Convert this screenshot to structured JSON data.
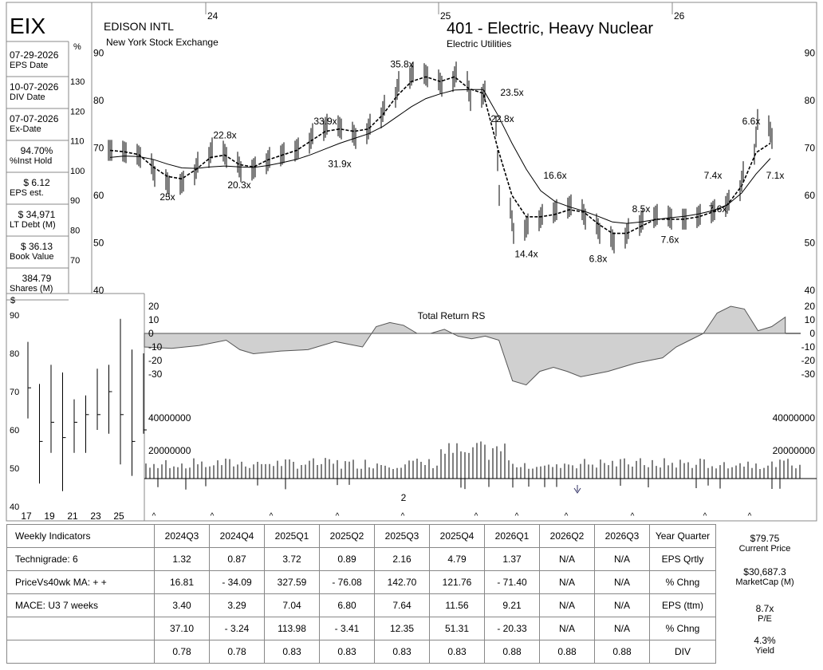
{
  "header": {
    "ticker": "EIX",
    "company": "EDISON INTL",
    "exchange": "New York Stock Exchange",
    "industry": "401 - Electric, Heavy Nuclear",
    "sector": "Electric Utilities",
    "year_labels": [
      "24",
      "25",
      "26"
    ]
  },
  "sidebar": {
    "items": [
      {
        "value": "07-29-2026",
        "label": "EPS Date"
      },
      {
        "value": "10-07-2026",
        "label": "DIV Date"
      },
      {
        "value": "07-07-2026",
        "label": "Ex-Date"
      },
      {
        "value": "94.70%",
        "label": "%Inst Hold"
      },
      {
        "value": "$ 6.12",
        "label": "EPS est."
      },
      {
        "value": "$ 34,971",
        "label": "LT Debt (M)"
      },
      {
        "value": "$ 36.13",
        "label": "Book Value"
      },
      {
        "value": "384.79",
        "label": "Shares (M)"
      }
    ],
    "pct_symbol": "%",
    "pct_ticks": [
      "130",
      "120",
      "110",
      "100",
      "90",
      "80",
      "70"
    ]
  },
  "chart_data": [
    {
      "type": "line",
      "name": "weekly price",
      "ylim": [
        40,
        90
      ],
      "yticks": [
        40,
        50,
        60,
        70,
        80,
        90
      ],
      "xlim": [
        0,
        140
      ],
      "x": [
        0,
        3,
        6,
        9,
        12,
        15,
        18,
        21,
        24,
        27,
        30,
        33,
        36,
        39,
        42,
        45,
        48,
        51,
        54,
        57,
        60,
        63,
        66,
        69,
        72,
        75,
        78,
        81,
        84,
        87,
        90,
        93,
        96,
        99,
        102,
        105,
        108,
        111,
        114,
        117,
        120,
        123,
        126,
        129,
        132,
        135,
        138
      ],
      "close": [
        69.5,
        69,
        68,
        64,
        62,
        63,
        67,
        70,
        68,
        65,
        66,
        68,
        69,
        70,
        73,
        75,
        74,
        72,
        75,
        79,
        84,
        86,
        85,
        83,
        86,
        80,
        82,
        60,
        52,
        54,
        56,
        57,
        58,
        55,
        52,
        50,
        53,
        55,
        56,
        55,
        55,
        56,
        57,
        59,
        65,
        76,
        72
      ],
      "ma10": [
        69.5,
        69.2,
        68.6,
        66,
        64,
        63.5,
        65.5,
        68,
        68.5,
        66.5,
        66,
        67.5,
        68.5,
        69.5,
        71.5,
        73.5,
        74,
        73.5,
        74,
        77,
        81,
        84,
        85,
        84,
        85,
        82.5,
        81.5,
        70,
        60,
        55.5,
        55.5,
        56,
        57,
        56.5,
        54,
        52,
        52,
        53.5,
        55,
        55,
        55,
        55.5,
        56.5,
        58,
        62,
        69,
        71
      ],
      "ma40": [
        68,
        68.3,
        68.2,
        67.6,
        66.6,
        65.8,
        65.7,
        66,
        66.2,
        66,
        65.9,
        66.3,
        66.9,
        67.6,
        68.6,
        69.8,
        71,
        72,
        73,
        74.5,
        76.6,
        78.7,
        80.4,
        81.4,
        82.2,
        82.3,
        82.3,
        77,
        71,
        65.5,
        61,
        58.7,
        57.6,
        56.7,
        55.6,
        54.4,
        54.1,
        54.4,
        54.9,
        55.3,
        55.6,
        56.1,
        56.8,
        58,
        60.5,
        64.5,
        67.8
      ],
      "pe_labels": [
        {
          "x": 12,
          "y": 59,
          "text": "25x"
        },
        {
          "x": 24,
          "y": 72,
          "text": "22.8x"
        },
        {
          "x": 27,
          "y": 61.5,
          "text": "20.3x"
        },
        {
          "x": 45,
          "y": 75,
          "text": "33.9x"
        },
        {
          "x": 48,
          "y": 66,
          "text": "31.9x"
        },
        {
          "x": 61,
          "y": 87,
          "text": "35.8x"
        },
        {
          "x": 84,
          "y": 81,
          "text": "23.5x"
        },
        {
          "x": 82,
          "y": 75.5,
          "text": "22.8x"
        },
        {
          "x": 93,
          "y": 63.5,
          "text": "16.6x"
        },
        {
          "x": 87,
          "y": 47,
          "text": "14.4x"
        },
        {
          "x": 102,
          "y": 46,
          "text": "6.8x"
        },
        {
          "x": 111,
          "y": 56.5,
          "text": "8.5x"
        },
        {
          "x": 117,
          "y": 50,
          "text": "7.6x"
        },
        {
          "x": 126,
          "y": 63.5,
          "text": "7.4x"
        },
        {
          "x": 127,
          "y": 56.5,
          "text": "7.6x"
        },
        {
          "x": 134,
          "y": 75,
          "text": "6.6x"
        },
        {
          "x": 139,
          "y": 63.5,
          "text": "7.1x"
        }
      ]
    },
    {
      "type": "area",
      "title": "Total Return RS",
      "ylim": [
        -35,
        25
      ],
      "yticks": [
        20,
        10,
        0,
        -10,
        -20,
        -30
      ],
      "x": [
        0,
        6,
        12,
        18,
        21,
        24,
        30,
        36,
        42,
        45,
        48,
        51,
        54,
        57,
        60,
        63,
        66,
        69,
        72,
        75,
        78,
        81,
        84,
        87,
        90,
        93,
        96,
        99,
        102,
        105,
        108,
        111,
        114,
        117,
        120,
        123,
        126,
        129,
        132,
        135,
        138,
        141
      ],
      "values": [
        -10,
        -11,
        -9,
        -5,
        -12,
        -15,
        -13,
        -12,
        -6,
        -8,
        -10,
        5,
        8,
        6,
        0,
        0,
        3,
        -2,
        -4,
        -2,
        -5,
        -35,
        -38,
        -28,
        -25,
        -28,
        -32,
        -30,
        -28,
        -25,
        -22,
        -20,
        -18,
        -10,
        -5,
        0,
        15,
        20,
        18,
        2,
        5,
        12
      ]
    },
    {
      "type": "bar",
      "title": "volume",
      "yticks": [
        40000000,
        20000000
      ],
      "ytick_labels": [
        "40000000",
        "20000000"
      ],
      "event_label": "2"
    },
    {
      "type": "line",
      "title": "yearly price range",
      "y_symbol": "$",
      "yticks": [
        40,
        50,
        60,
        70,
        80,
        90
      ],
      "xtick_labels": [
        "17",
        "19",
        "21",
        "23",
        "25"
      ]
    }
  ],
  "table": {
    "header_label": "Weekly Indicators",
    "quarters": [
      "2024Q3",
      "2024Q4",
      "2025Q1",
      "2025Q2",
      "2025Q3",
      "2025Q4",
      "2026Q1",
      "2026Q2",
      "2026Q3"
    ],
    "yq_label": "Year Quarter",
    "rows": [
      {
        "label": "Technigrade: 6",
        "values": [
          "1.32",
          "0.87",
          "3.72",
          "0.89",
          "2.16",
          "4.79",
          "1.37",
          "N/A",
          "N/A"
        ],
        "right": "EPS Qrtly"
      },
      {
        "label": "PriceVs40wk MA:  + +",
        "values": [
          "16.81",
          "- 34.09",
          "327.59",
          "- 76.08",
          "142.70",
          "121.76",
          "- 71.40",
          "N/A",
          "N/A"
        ],
        "right": "% Chng"
      },
      {
        "label": "MACE: U3  7 weeks",
        "values": [
          "3.40",
          "3.29",
          "7.04",
          "6.80",
          "7.64",
          "11.56",
          "9.21",
          "N/A",
          "N/A"
        ],
        "right": "EPS (ttm)"
      },
      {
        "label": "",
        "values": [
          "37.10",
          "- 3.24",
          "113.98",
          "- 3.41",
          "12.35",
          "51.31",
          "- 20.33",
          "N/A",
          "N/A"
        ],
        "right": "% Chng"
      },
      {
        "label": "",
        "values": [
          "0.78",
          "0.78",
          "0.83",
          "0.83",
          "0.83",
          "0.83",
          "0.88",
          "0.88",
          "0.88"
        ],
        "right": "DIV"
      }
    ]
  },
  "right_panel": {
    "current_price": "$79.75",
    "current_price_label": "Current Price",
    "market_cap": "$30,687.3",
    "market_cap_label": "MarketCap (M)",
    "pe": "8.7x",
    "pe_label": "P/E",
    "yield": "4.3%",
    "yield_label": "Yield"
  }
}
